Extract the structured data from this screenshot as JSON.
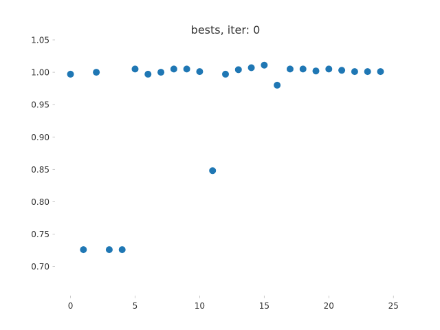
{
  "chart_data": {
    "type": "scatter",
    "title": "bests, iter: 0",
    "xlabel": "",
    "ylabel": "",
    "xlim": [
      -1.2,
      25.2
    ],
    "ylim": [
      0.655,
      1.05
    ],
    "xticks": [
      0,
      5,
      10,
      15,
      20,
      25
    ],
    "yticks": [
      0.7,
      0.75,
      0.8,
      0.85,
      0.9,
      0.95,
      1.0,
      1.05
    ],
    "grid": false,
    "marker_color": "#1f77b4",
    "series": [
      {
        "x": [
          0,
          1,
          2,
          3,
          4,
          5,
          6,
          7,
          8,
          9,
          10,
          11,
          12,
          13,
          14,
          15,
          16,
          17,
          18,
          19,
          20,
          21,
          22,
          23,
          24
        ],
        "y": [
          0.997,
          0.726,
          1.0,
          0.726,
          0.726,
          1.005,
          0.997,
          1.0,
          1.005,
          1.005,
          1.001,
          0.848,
          0.997,
          1.004,
          1.007,
          1.011,
          0.98,
          1.005,
          1.005,
          1.002,
          1.005,
          1.003,
          1.001,
          1.001,
          1.001
        ]
      }
    ]
  }
}
